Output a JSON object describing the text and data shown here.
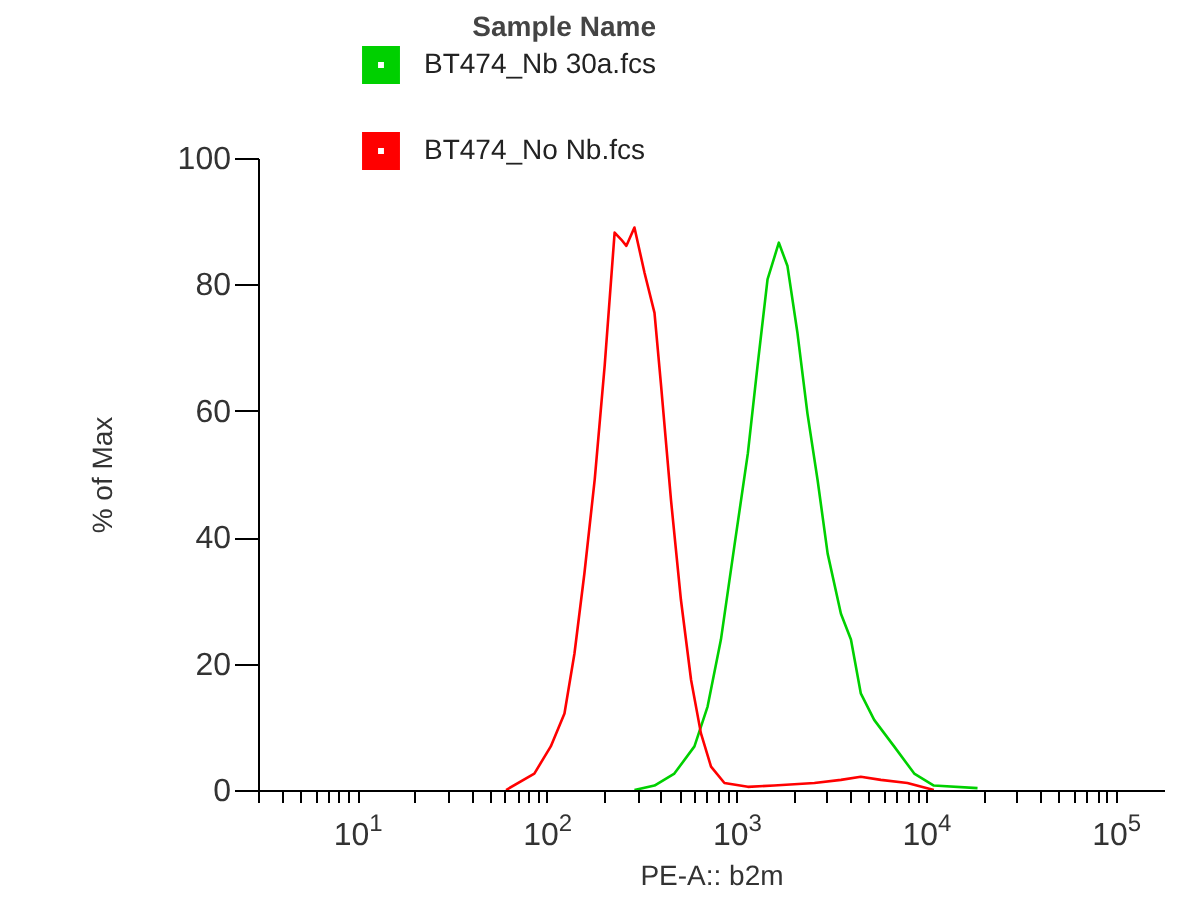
{
  "chart_data": {
    "type": "line",
    "xlabel": "PE-A:: b2m",
    "ylabel": "% of Max",
    "legend_title": "Sample Name",
    "legend": "top",
    "log": "x",
    "xlim": [
      3,
      180000
    ],
    "ylim": [
      0,
      100
    ],
    "yticks": [
      0,
      20,
      40,
      60,
      80,
      100
    ],
    "xticks": [
      {
        "value": 3,
        "label": null
      },
      {
        "value": 4,
        "label": null
      },
      {
        "value": 5,
        "label": null
      },
      {
        "value": 6,
        "label": null
      },
      {
        "value": 7,
        "label": null
      },
      {
        "value": 8,
        "label": null
      },
      {
        "value": 9,
        "label": null
      },
      {
        "value": 10,
        "label": "10$^{1}$"
      },
      {
        "value": 20,
        "label": null
      },
      {
        "value": 30,
        "label": null
      },
      {
        "value": 40,
        "label": null
      },
      {
        "value": 50,
        "label": null
      },
      {
        "value": 60,
        "label": null
      },
      {
        "value": 70,
        "label": null
      },
      {
        "value": 80,
        "label": null
      },
      {
        "value": 90,
        "label": null
      },
      {
        "value": 100,
        "label": "10$^{2}$"
      },
      {
        "value": 200,
        "label": null
      },
      {
        "value": 300,
        "label": null
      },
      {
        "value": 400,
        "label": null
      },
      {
        "value": 500,
        "label": null
      },
      {
        "value": 600,
        "label": null
      },
      {
        "value": 700,
        "label": null
      },
      {
        "value": 800,
        "label": null
      },
      {
        "value": 900,
        "label": null
      },
      {
        "value": 1000,
        "label": "10$^{3}$"
      },
      {
        "value": 2000,
        "label": null
      },
      {
        "value": 3000,
        "label": null
      },
      {
        "value": 4000,
        "label": null
      },
      {
        "value": 5000,
        "label": null
      },
      {
        "value": 6000,
        "label": null
      },
      {
        "value": 7000,
        "label": null
      },
      {
        "value": 8000,
        "label": null
      },
      {
        "value": 9000,
        "label": null
      },
      {
        "value": 10000,
        "label": "10$^{4}$"
      },
      {
        "value": 20000,
        "label": null
      },
      {
        "value": 30000,
        "label": null
      },
      {
        "value": 40000,
        "label": null
      },
      {
        "value": 50000,
        "label": null
      },
      {
        "value": 60000,
        "label": null
      },
      {
        "value": 70000,
        "label": null
      },
      {
        "value": 80000,
        "label": null
      },
      {
        "value": 90000,
        "label": null
      },
      {
        "value": 100000,
        "label": "10$^{5}$"
      }
    ],
    "series": [
      {
        "name": "BT474_Nb 30a.fcs",
        "color": "#00d000",
        "x": [
          290,
          370,
          471,
          601,
          705,
          829,
          975,
          1150,
          1293,
          1460,
          1675,
          1860,
          2100,
          2370,
          2680,
          3030,
          3560,
          4020,
          4530,
          5330,
          6790,
          8670,
          11000,
          18700
        ],
        "values": [
          0,
          0.7,
          2.6,
          6.9,
          13.2,
          23.8,
          38.5,
          53.3,
          67.1,
          80.8,
          86.6,
          82.9,
          72.3,
          59.6,
          49.1,
          37.4,
          27.9,
          23.8,
          15.3,
          11.1,
          6.9,
          2.6,
          0.7,
          0.3
        ]
      },
      {
        "name": "BT474_No Nb.fcs",
        "color": "#ff0000",
        "x": [
          61,
          86,
          105,
          124,
          140,
          158,
          179,
          202,
          228,
          247,
          263,
          290,
          328,
          370,
          401,
          452,
          510,
          577,
          650,
          735,
          865,
          1150,
          1580,
          2580,
          3560,
          4530,
          5780,
          7980,
          11000
        ],
        "values": [
          0,
          2.6,
          6.9,
          12.1,
          21.6,
          34.3,
          49.1,
          67.1,
          88.2,
          87.1,
          86.1,
          89.0,
          81.8,
          75.5,
          63.9,
          45.9,
          30.1,
          17.4,
          9.0,
          3.7,
          1.1,
          0.5,
          0.7,
          1.1,
          1.6,
          2.1,
          1.6,
          1.1,
          0
        ]
      }
    ]
  }
}
